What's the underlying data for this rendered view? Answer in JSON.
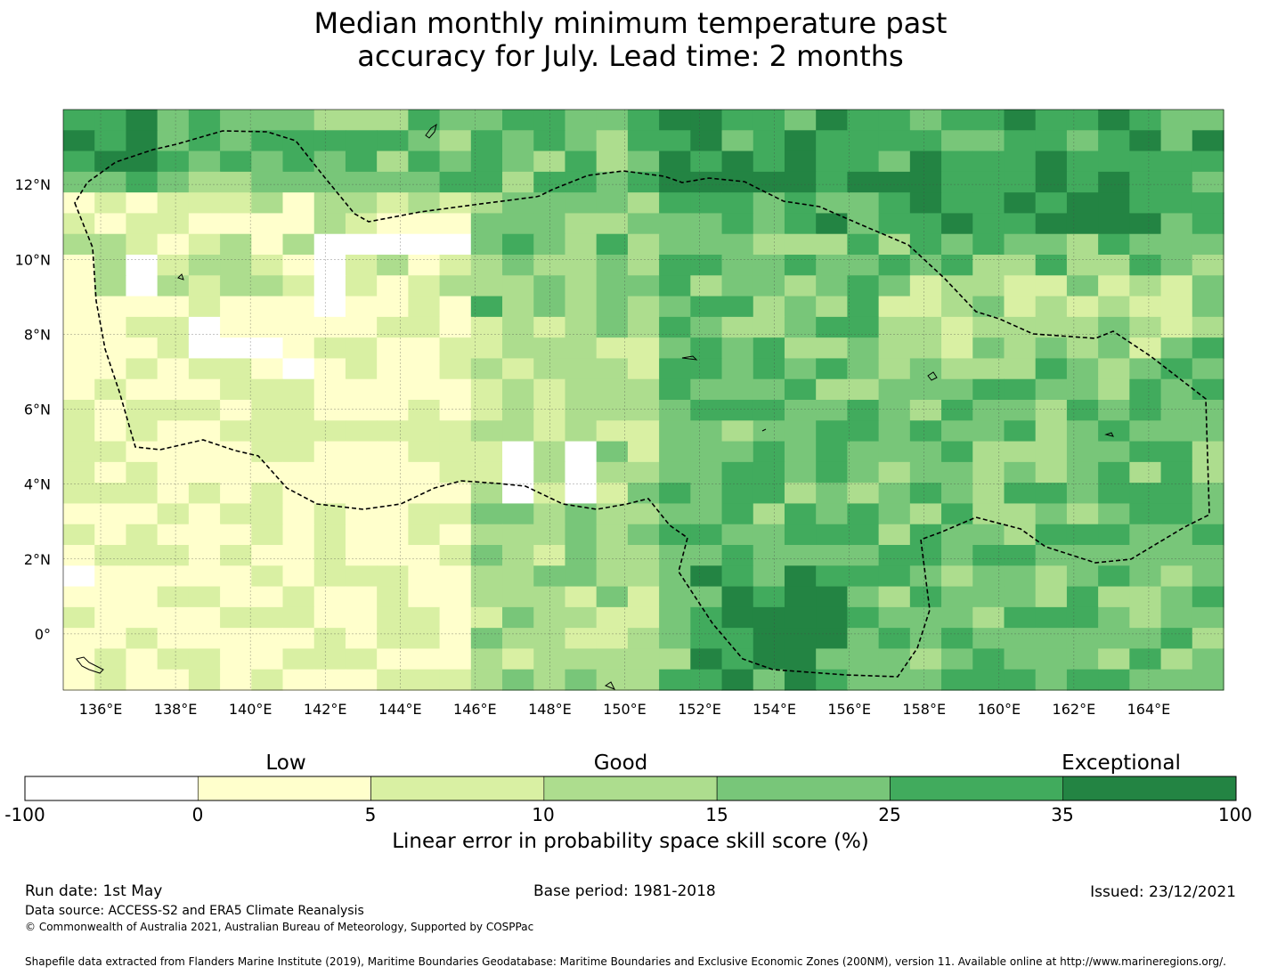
{
  "title_line1": "Median monthly minimum temperature past",
  "title_line2": "accuracy for July. Lead time: 2 months",
  "map": {
    "lon_range": [
      135,
      166
    ],
    "lat_range": [
      -1.5,
      14
    ],
    "lon_ticks": [
      "136°E",
      "138°E",
      "140°E",
      "142°E",
      "144°E",
      "146°E",
      "148°E",
      "150°E",
      "152°E",
      "154°E",
      "156°E",
      "158°E",
      "160°E",
      "162°E",
      "164°E"
    ],
    "lat_ticks": [
      "12°N",
      "10°N",
      "8°N",
      "6°N",
      "4°N",
      "2°N",
      "0°"
    ]
  },
  "colorbar": {
    "categories": [
      "Low",
      "Good",
      "Exceptional"
    ],
    "tick_labels": [
      "-100",
      "0",
      "5",
      "10",
      "15",
      "25",
      "35",
      "100"
    ],
    "colors": [
      "#ffffff",
      "#ffffcc",
      "#d9f0a3",
      "#addd8e",
      "#78c679",
      "#41ab5d",
      "#238443"
    ],
    "label": "Linear error in probability space skill score (%)"
  },
  "footer": {
    "run_date": "Run date: 1st May",
    "base_period": "Base period: 1981-2018",
    "issued": "Issued: 23/12/2021",
    "data_source": "Data source: ACCESS-S2 and ERA5 Climate Reanalysis",
    "copyright": "© Commonwealth of Australia 2021, Australian Bureau of Meteorology, Supported by COSPPac",
    "shapefile": "Shapefile data extracted from Flanders Marine Institute (2019), Maritime Boundaries Geodatabase: Maritime Boundaries and Exclusive Economic Zones (200NM), version 11. Available online at http://www.marineregions.org/."
  }
}
